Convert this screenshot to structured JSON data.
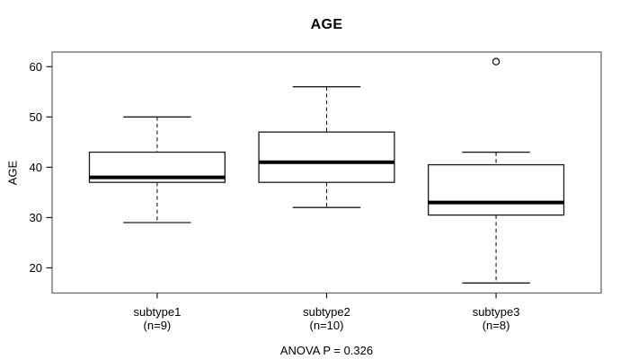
{
  "chart_data": {
    "type": "boxplot",
    "title": "AGE",
    "ylabel": "AGE",
    "annotation": "ANOVA P = 0.326",
    "yticks": [
      20,
      30,
      40,
      50,
      60
    ],
    "ylim": [
      15.0,
      62.9
    ],
    "grid": false,
    "legend": "none",
    "colors": {
      "background": "#ffffff",
      "frame": "#6b6b6b",
      "line": "#1a1a1a",
      "median": "#000000",
      "box_fill": "#ffffff",
      "text": "#000000"
    },
    "groups": [
      {
        "label": "subtype1",
        "sublabel": "(n=9)",
        "n": 9,
        "whisker_low": 29,
        "q1": 37,
        "median": 38,
        "q3": 43,
        "whisker_high": 50,
        "outliers": []
      },
      {
        "label": "subtype2",
        "sublabel": "(n=10)",
        "n": 10,
        "whisker_low": 32,
        "q1": 37,
        "median": 41,
        "q3": 47,
        "whisker_high": 56,
        "outliers": []
      },
      {
        "label": "subtype3",
        "sublabel": "(n=8)",
        "n": 8,
        "whisker_low": 17,
        "q1": 30.5,
        "median": 33,
        "q3": 40.5,
        "whisker_high": 43,
        "outliers": [
          61
        ]
      }
    ]
  }
}
